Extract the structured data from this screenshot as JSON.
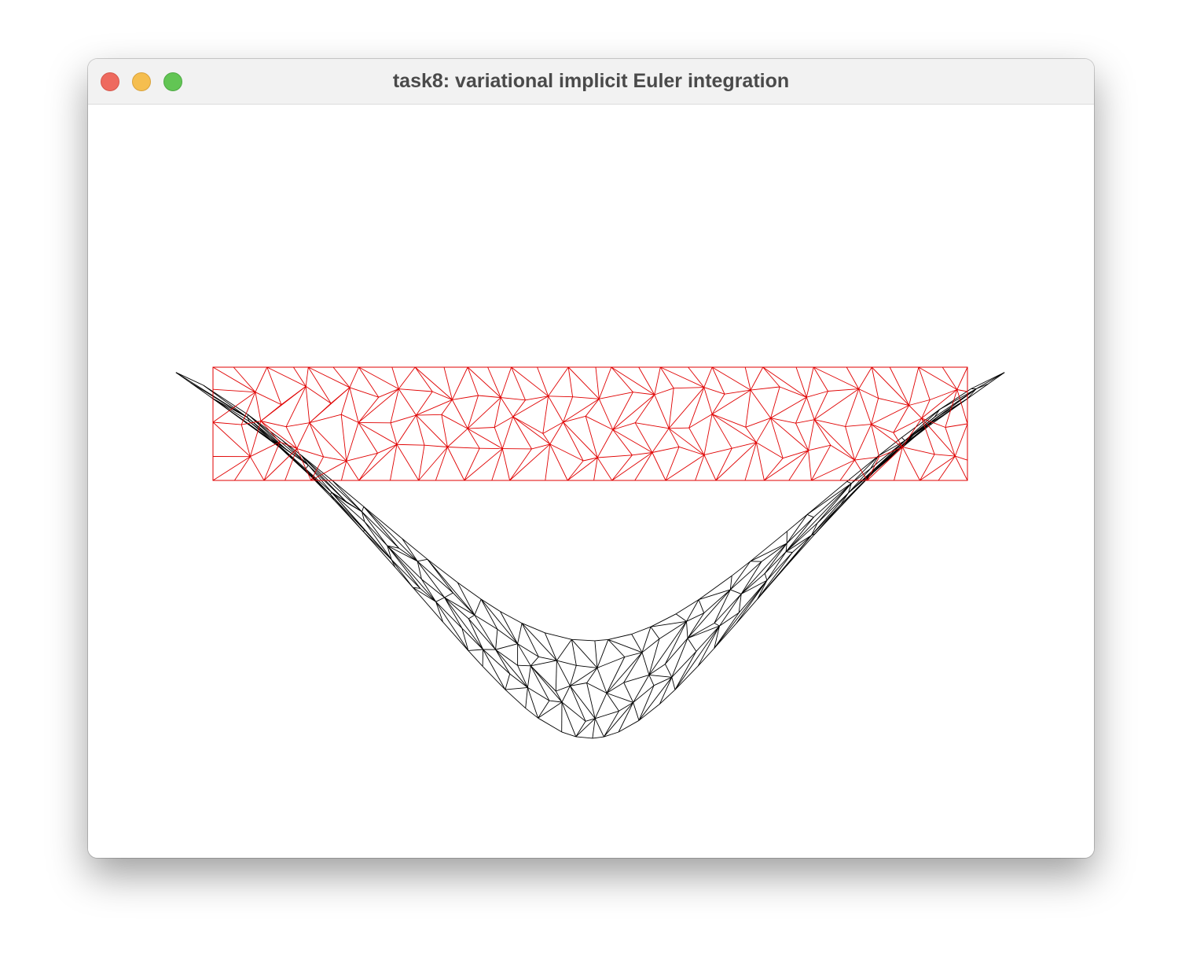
{
  "window": {
    "title": "task8: variational implicit Euler integration"
  },
  "icons": {
    "close": "close-circle-icon",
    "minimize": "minimize-circle-icon",
    "zoom": "zoom-circle-icon"
  },
  "colors": {
    "rest_mesh": "#e00000",
    "deformed_mesh": "#000000",
    "traffic_close": "#ee6a5f",
    "traffic_minimize": "#f5be4f",
    "traffic_zoom": "#62c554"
  }
}
